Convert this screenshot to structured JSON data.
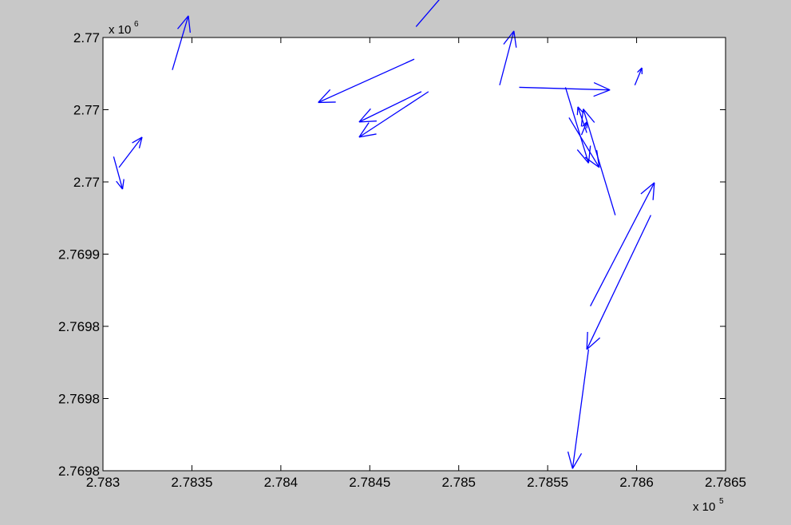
{
  "chart_data": {
    "type": "quiver",
    "title": "",
    "xlabel": "",
    "ylabel": "",
    "x_exponent_label": "x 10",
    "x_exponent": "5",
    "y_exponent_label": "x 10",
    "y_exponent": "6",
    "xlim": [
      2.783,
      2.7865
    ],
    "ylim": [
      2.7698,
      2.77
    ],
    "x_tick_labels": [
      "2.783",
      "2.7835",
      "2.784",
      "2.7845",
      "2.785",
      "2.7855",
      "2.786",
      "2.7865"
    ],
    "y_tick_labels": [
      "2.7698",
      "2.7698",
      "2.7698",
      "2.7699",
      "2.77",
      "2.77",
      "2.77"
    ],
    "grid": false,
    "arrow_color": "#0000ff",
    "axes_background": "#ffffff",
    "figure_background": "#c8c8c8",
    "arrows": [
      {
        "x": 2.78306,
        "y": 2.769945,
        "u": 5e-05,
        "v": -1.5e-05
      },
      {
        "x": 2.78309,
        "y": 2.76994,
        "u": 0.00013,
        "v": 1.4e-05
      },
      {
        "x": 2.78339,
        "y": 2.769985,
        "u": 9e-05,
        "v": 2.5e-05
      },
      {
        "x": 2.78475,
        "y": 2.76999,
        "u": -0.00054,
        "v": -2e-05
      },
      {
        "x": 2.78476,
        "y": 2.770005,
        "u": 0.00022,
        "v": 2.1e-05
      },
      {
        "x": 2.78483,
        "y": 2.769975,
        "u": -0.00039,
        "v": -2.1e-05
      },
      {
        "x": 2.78479,
        "y": 2.769975,
        "u": -0.00035,
        "v": -1.4e-05
      },
      {
        "x": 2.78523,
        "y": 2.769978,
        "u": 8e-05,
        "v": 2.5e-05
      },
      {
        "x": 2.78534,
        "y": 2.769977,
        "u": 0.00051,
        "v": -1.2e-06
      },
      {
        "x": 2.7856,
        "y": 2.769977,
        "u": 0.00013,
        "v": -3.5e-05
      },
      {
        "x": 2.78588,
        "y": 2.769918,
        "u": -0.00018,
        "v": 4.9e-05
      },
      {
        "x": 2.78562,
        "y": 2.769963,
        "u": 0.00017,
        "v": -2.3e-05
      },
      {
        "x": 2.78572,
        "y": 2.769956,
        "u": -5e-05,
        "v": 1.2e-05
      },
      {
        "x": 2.78569,
        "y": 2.769955,
        "u": 3e-05,
        "v": 6e-06
      },
      {
        "x": 2.78599,
        "y": 2.769978,
        "u": 4e-05,
        "v": 8e-06
      },
      {
        "x": 2.78574,
        "y": 2.769876,
        "u": 0.00036,
        "v": 5.7e-05
      },
      {
        "x": 2.78608,
        "y": 2.769918,
        "u": -0.00036,
        "v": -6.2e-05
      },
      {
        "x": 2.78573,
        "y": 2.769856,
        "u": -9e-05,
        "v": -5.5e-05
      }
    ]
  }
}
